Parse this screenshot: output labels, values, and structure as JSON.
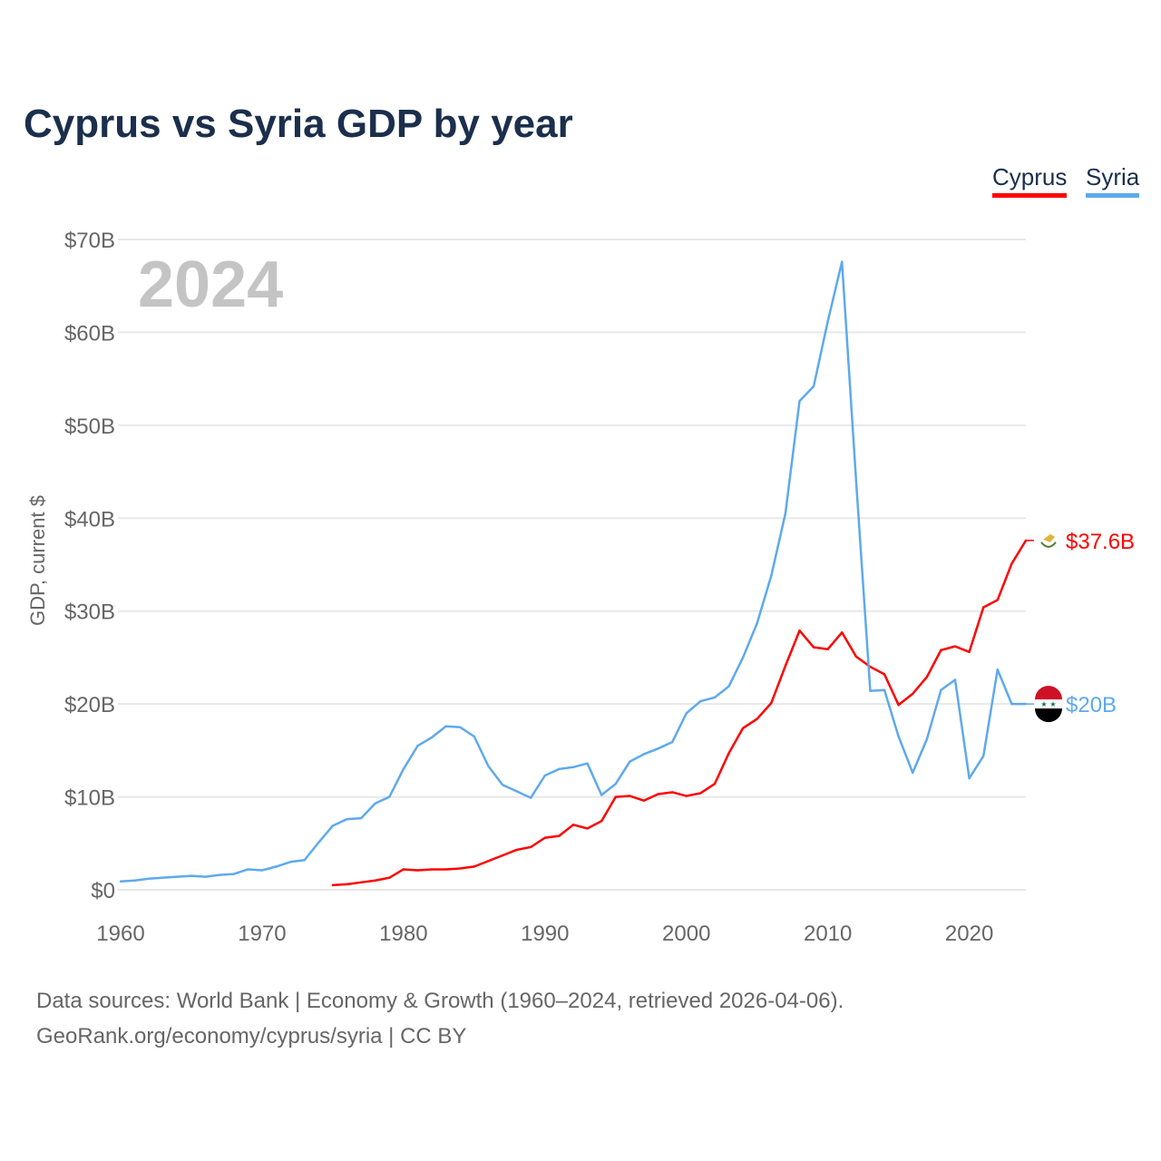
{
  "chart_data": {
    "type": "line",
    "title": "Cyprus vs Syria GDP by year",
    "xlabel": "",
    "ylabel": "GDP, current $",
    "year_watermark": "2024",
    "xlim": [
      1960,
      2024
    ],
    "ylim": [
      0,
      70
    ],
    "x_ticks": [
      1960,
      1970,
      1980,
      1990,
      2000,
      2010,
      2020
    ],
    "y_ticks": [
      0,
      10,
      20,
      30,
      40,
      50,
      60,
      70
    ],
    "y_tick_labels": [
      "$0",
      "$10B",
      "$20B",
      "$30B",
      "$40B",
      "$50B",
      "$60B",
      "$70B"
    ],
    "grid": true,
    "legend_position": "top-right",
    "series": [
      {
        "name": "Cyprus",
        "color": "#ff0000",
        "end_label": "$37.6B",
        "flag": "cyprus-flag",
        "start_year": 1975,
        "values": [
          0.5,
          0.6,
          0.8,
          1.0,
          1.3,
          2.2,
          2.1,
          2.2,
          2.2,
          2.3,
          2.5,
          3.1,
          3.7,
          4.3,
          4.6,
          5.6,
          5.8,
          7.0,
          6.6,
          7.4,
          10.0,
          10.1,
          9.6,
          10.3,
          10.5,
          10.1,
          10.4,
          11.4,
          14.7,
          17.4,
          18.4,
          20.1,
          24.1,
          27.9,
          26.1,
          25.9,
          27.7,
          25.1,
          24.0,
          23.2,
          19.9,
          21.1,
          22.9,
          25.8,
          26.2,
          25.6,
          30.4,
          31.2,
          35.1,
          37.6
        ]
      },
      {
        "name": "Syria",
        "color": "#5ea9ed",
        "end_label": "$20B",
        "flag": "syria-flag",
        "start_year": 1960,
        "values": [
          0.9,
          1.0,
          1.2,
          1.3,
          1.4,
          1.5,
          1.4,
          1.6,
          1.7,
          2.2,
          2.1,
          2.5,
          3.0,
          3.2,
          5.1,
          6.9,
          7.6,
          7.7,
          9.3,
          10.0,
          13.0,
          15.5,
          16.4,
          17.6,
          17.5,
          16.5,
          13.3,
          11.3,
          10.6,
          9.9,
          12.3,
          13.0,
          13.2,
          13.6,
          10.2,
          11.4,
          13.8,
          14.6,
          15.2,
          15.9,
          19.0,
          20.3,
          20.7,
          21.9,
          25.0,
          28.7,
          33.8,
          40.5,
          52.6,
          54.2,
          61.2,
          67.6,
          44.0,
          21.4,
          21.5,
          16.5,
          12.6,
          16.2,
          21.5,
          22.6,
          12.0,
          14.4,
          23.7,
          20.0,
          20.0
        ]
      }
    ]
  },
  "footer": {
    "line1": "Data sources: World Bank | Economy & Growth (1960–2024, retrieved 2026-04-06).",
    "line2": "GeoRank.org/economy/cyprus/syria | CC BY"
  }
}
